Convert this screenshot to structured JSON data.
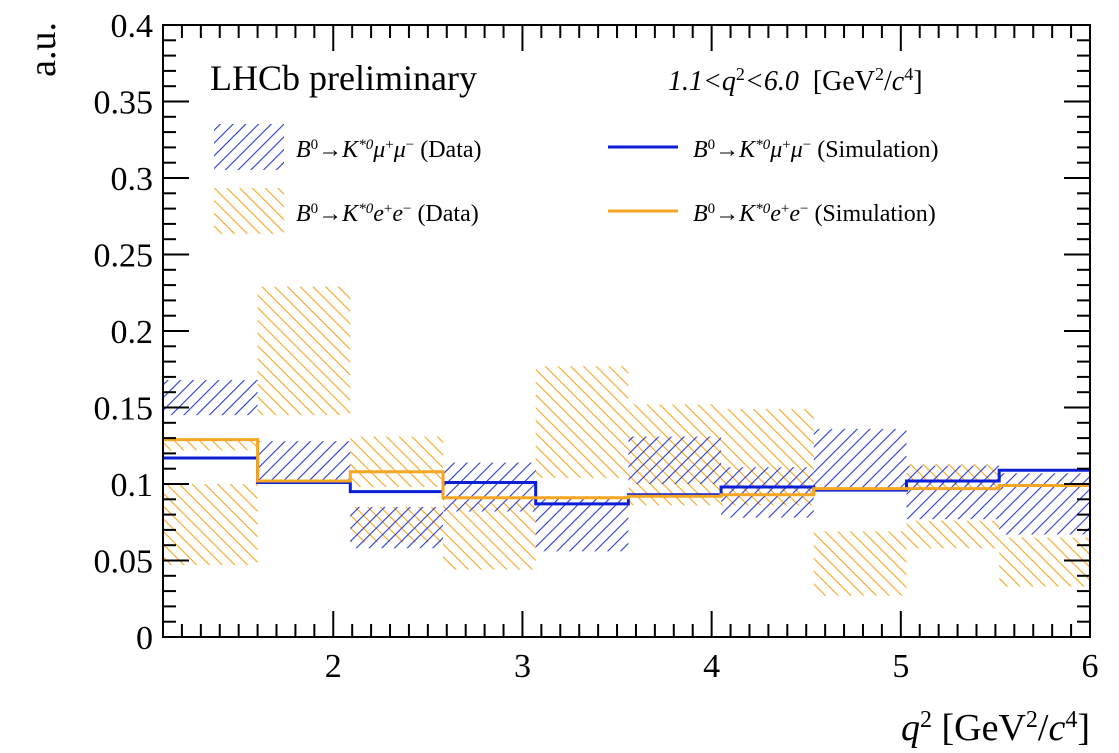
{
  "chart_data": {
    "type": "line",
    "title": "",
    "annotation_experiment": "LHCb preliminary",
    "annotation_range": {
      "lo": "1.1",
      "var": "q",
      "hi": "6.0",
      "units_open": "[GeV",
      "units_slash": "/",
      "units_c": "c",
      "units_close": "]"
    },
    "xlabel": {
      "var": "q",
      "units_open": " [GeV",
      "units_slash": "/",
      "units_c": "c",
      "units_close": "]"
    },
    "ylabel": "a.u.",
    "xlim": [
      1.1,
      6.0
    ],
    "ylim": [
      0,
      0.4
    ],
    "x_ticks": [
      2,
      3,
      4,
      5,
      6
    ],
    "x_tick_labels": [
      "2",
      "3",
      "4",
      "5",
      "6"
    ],
    "y_ticks": [
      0,
      0.05,
      0.1,
      0.15,
      0.2,
      0.25,
      0.3,
      0.35,
      0.4
    ],
    "y_tick_labels": [
      "0",
      "0.05",
      "0.1",
      "0.15",
      "0.2",
      "0.25",
      "0.3",
      "0.35",
      "0.4"
    ],
    "bin_edges": [
      1.1,
      1.6,
      2.09,
      2.58,
      3.07,
      3.56,
      4.05,
      4.54,
      5.03,
      5.52,
      6.0
    ],
    "series": [
      {
        "kind": "band",
        "name": "(Data)",
        "legend": {
          "b": "B",
          "b_sup": "0",
          "arrow": "→",
          "k": "K",
          "k_sup": "*0",
          "l1": "μ",
          "l1_sup": "+",
          "l2": "μ",
          "l2_sup": "−",
          "suffix": "(Data)"
        },
        "color": "#2a3ccf",
        "hatch": "forward",
        "low": [
          0.145,
          0.1,
          0.058,
          0.082,
          0.056,
          0.1,
          0.078,
          0.097,
          0.077,
          0.067
        ],
        "high": [
          0.168,
          0.128,
          0.085,
          0.114,
          0.092,
          0.131,
          0.111,
          0.136,
          0.112,
          0.107
        ]
      },
      {
        "kind": "band",
        "name": "(Data)",
        "legend": {
          "b": "B",
          "b_sup": "0",
          "arrow": "→",
          "k": "K",
          "k_sup": "*0",
          "l1": "e",
          "l1_sup": "+",
          "l2": "e",
          "l2_sup": "−",
          "suffix": "(Data)"
        },
        "color": "#f5a623",
        "hatch": "backward",
        "segments": [
          [
            {
              "low": 0.047,
              "high": 0.1
            },
            {
              "low": 0.122,
              "high": 0.13
            }
          ],
          [
            {
              "low": 0.145,
              "high": 0.229
            }
          ],
          [
            {
              "low": 0.098,
              "high": 0.131
            },
            {
              "low": 0.062,
              "high": 0.085
            }
          ],
          [
            {
              "low": 0.044,
              "high": 0.088
            }
          ],
          [
            {
              "low": 0.104,
              "high": 0.177
            }
          ],
          [
            {
              "low": 0.086,
              "high": 0.152
            }
          ],
          [
            {
              "low": 0.086,
              "high": 0.149
            }
          ],
          [
            {
              "low": 0.027,
              "high": 0.069
            }
          ],
          [
            {
              "low": 0.058,
              "high": 0.076
            },
            {
              "low": 0.097,
              "high": 0.113
            }
          ],
          [
            {
              "low": 0.033,
              "high": 0.065
            }
          ]
        ]
      },
      {
        "kind": "step",
        "name": "(Simulation)",
        "legend": {
          "b": "B",
          "b_sup": "0",
          "arrow": "→",
          "k": "K",
          "k_sup": "*0",
          "l1": "μ",
          "l1_sup": "+",
          "l2": "μ",
          "l2_sup": "−",
          "suffix": "(Simulation)"
        },
        "color": "#0b1fd6",
        "values": [
          0.117,
          0.101,
          0.095,
          0.101,
          0.087,
          0.093,
          0.098,
          0.096,
          0.102,
          0.109
        ]
      },
      {
        "kind": "step",
        "name": "(Simulation)",
        "legend": {
          "b": "B",
          "b_sup": "0",
          "arrow": "→",
          "k": "K",
          "k_sup": "*0",
          "l1": "e",
          "l1_sup": "+",
          "l2": "e",
          "l2_sup": "−",
          "suffix": "(Simulation)"
        },
        "color": "#f5a623",
        "values": [
          0.129,
          0.102,
          0.108,
          0.091,
          0.091,
          0.092,
          0.093,
          0.097,
          0.097,
          0.099
        ]
      }
    ]
  }
}
